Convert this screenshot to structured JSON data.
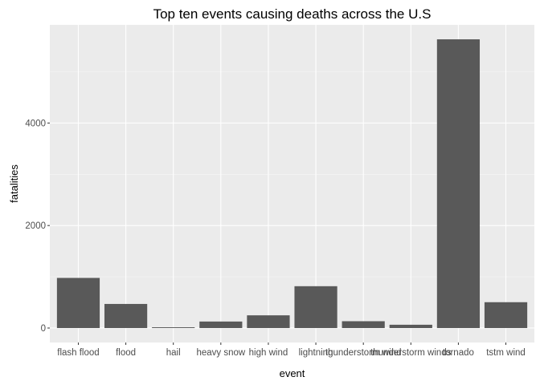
{
  "chart_data": {
    "type": "bar",
    "title": "Top ten events causing deaths across the U.S",
    "xlabel": "event",
    "ylabel": "fatalities",
    "categories": [
      "flash flood",
      "flood",
      "hail",
      "heavy snow",
      "high wind",
      "lightning",
      "thunderstorm wind",
      "thunderstorm winds",
      "tornado",
      "tstm wind"
    ],
    "values": [
      978,
      470,
      15,
      127,
      248,
      816,
      133,
      64,
      5633,
      504
    ],
    "yticks": [
      0,
      2000,
      4000
    ],
    "ylim": [
      -282,
      5915
    ],
    "grid": true,
    "legend": "none",
    "colors": {
      "panel": "#ebebeb",
      "bar": "#595959",
      "grid": "#ffffff"
    }
  }
}
